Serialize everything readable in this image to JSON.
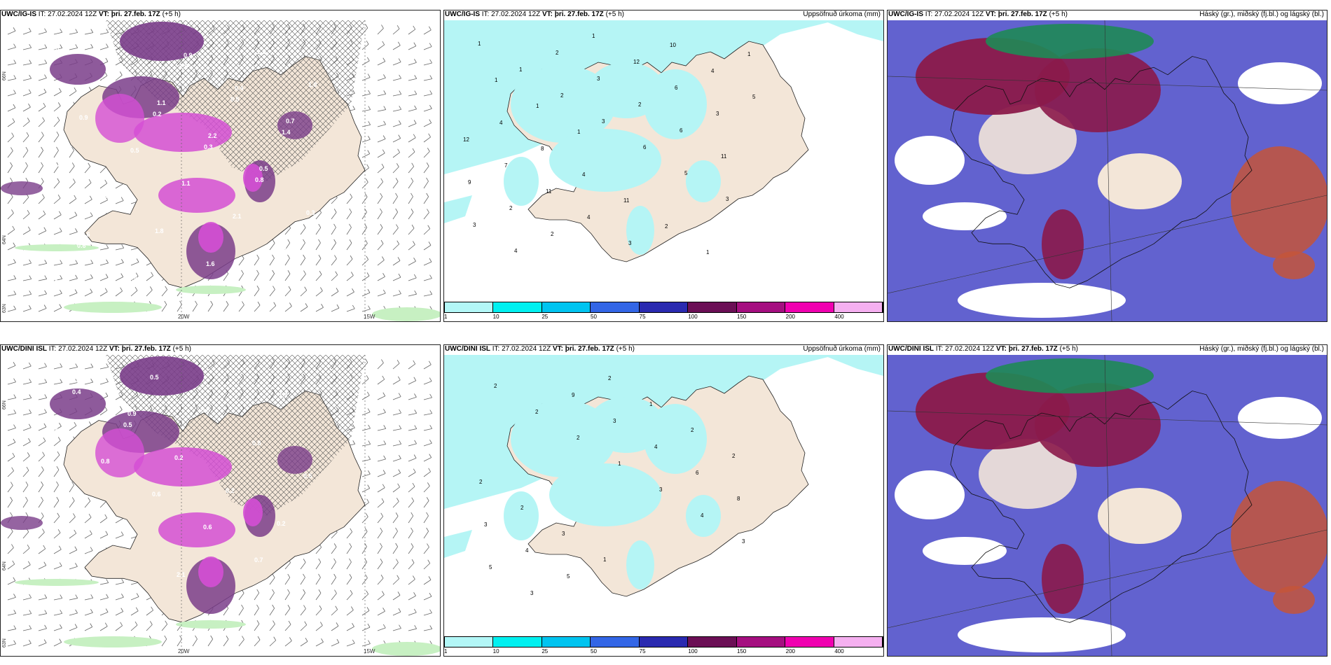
{
  "colors": {
    "land": "#f3e6d8",
    "sea": "#ffffff",
    "precip_light": "#b5f5f5",
    "purple_dark": "#7a3d8a",
    "magenta": "#d44fd4",
    "green_light": "#c7f0c2",
    "cloud_high": "#8b1a4a",
    "cloud_mid": "#5a5acc",
    "cloud_low_red": "#c4553a",
    "cloud_green": "#1f8a55",
    "cbar": [
      "#b3f7f7",
      "#00f0f0",
      "#00c4f0",
      "#3366e6",
      "#2a2ab0",
      "#6b0f55",
      "#a50f80",
      "#f000b0",
      "#f5b0f0"
    ]
  },
  "top": {
    "left_title": {
      "model": "UWC/IG-IS",
      "it": "IT: 27.02.2024 12Z",
      "vt_label": "VT:",
      "vt_val": "þri. 27.feb. 17Z",
      "offset": "(+5 h)"
    },
    "mid_title": {
      "model": "UWC/IG-IS",
      "it": "IT: 27.02.2024 12Z",
      "vt_label": "VT:",
      "vt_val": "þri. 27.feb. 17Z",
      "offset": "(+5 h)",
      "right": "Uppsöfnuð úrkoma (mm)"
    },
    "right_title": {
      "model": "UWC/IG-IS",
      "it": "IT: 27.02.2024 12Z",
      "vt_label": "VT:",
      "vt_val": "þri. 27.feb. 17Z",
      "offset": "(+5 h)",
      "right": "Háský (gr.), miðský (fj.bl.) og lágský (bl.)"
    },
    "left_values": [
      "0.3",
      "0.3",
      "0.2",
      "0.3",
      "0.8",
      "0.3",
      "0.6",
      "0.9",
      "1.6",
      "0.5",
      "1.4",
      "1.6",
      "2.6",
      "1.8",
      "1.6",
      "1.5",
      "1.0",
      "0.9",
      "0.5",
      "1.1",
      "2.1",
      "1.5",
      "0.7",
      "1.8",
      "1.1",
      "2.2",
      "0.5",
      "0.7",
      "0.6",
      "0.5",
      "0.9",
      "0.4",
      "0.7"
    ],
    "mid_values": [
      "1",
      "1",
      "2",
      "3",
      "6",
      "5",
      "3",
      "3",
      "4",
      "2",
      "3",
      "2",
      "6",
      "11",
      "9",
      "2",
      "2",
      "1",
      "12",
      "6",
      "3",
      "12",
      "7",
      "11",
      "4",
      "3",
      "10",
      "4",
      "5",
      "4",
      "8",
      "4",
      "11",
      "2",
      "1",
      "1",
      "1",
      "1",
      "1"
    ]
  },
  "bottom": {
    "left_title": {
      "model": "UWC/DINI ISL",
      "it": "IT: 27.02.2024 12Z",
      "vt_label": "VT:",
      "vt_val": "þri. 27.feb. 17Z",
      "offset": "(+5 h)"
    },
    "mid_title": {
      "model": "UWC/DINI ISL",
      "it": "IT: 27.02.2024 12Z",
      "vt_label": "VT:",
      "vt_val": "þri. 27.feb. 17Z",
      "offset": "(+5 h)",
      "right": "Uppsöfnuð úrkoma (mm)"
    },
    "right_title": {
      "model": "UWC/DINI ISL",
      "it": "IT: 27.02.2024 12Z",
      "vt_label": "VT:",
      "vt_val": "þri. 27.feb. 17Z",
      "offset": "(+5 h)",
      "right": "Háský (gr.), miðský (fj.bl.) og lágský (bl.)"
    },
    "left_values": [
      "0.4",
      "0.5",
      "0.2",
      "0.2",
      "0.2",
      "0.3",
      "0.4",
      "0.5",
      "0.6",
      "0.8",
      "0.5",
      "0.3",
      "1.7",
      "2.1",
      "1.5",
      "1.3",
      "1.2",
      "0.8",
      "0.6",
      "0.6",
      "0.7",
      "0.6",
      "0.8",
      "0.9"
    ],
    "mid_values": [
      "2",
      "2",
      "2",
      "1",
      "3",
      "4",
      "3",
      "5",
      "3",
      "9",
      "3",
      "4",
      "6",
      "8",
      "3",
      "4",
      "5",
      "2",
      "1",
      "2",
      "2",
      "2",
      "2",
      "3",
      "1"
    ]
  },
  "colorbar_ticks": [
    "1",
    "10",
    "25",
    "50",
    "75",
    "100",
    "150",
    "200",
    "400"
  ],
  "lon_labels": {
    "w20": "20W",
    "w15": "15W"
  },
  "lat_labels": {
    "n66": "66N",
    "n64": "64N",
    "n63": "63N"
  }
}
